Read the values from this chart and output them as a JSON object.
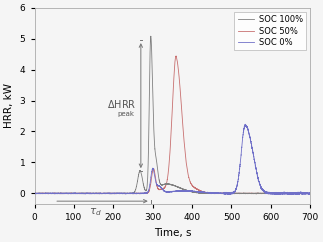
{
  "title": "",
  "xlabel": "Time, s",
  "ylabel": "HRR, kW",
  "xlim": [
    0,
    700
  ],
  "ylim": [
    -0.35,
    6
  ],
  "yticks": [
    0,
    1,
    2,
    3,
    4,
    5,
    6
  ],
  "xticks": [
    0,
    100,
    200,
    300,
    400,
    500,
    600,
    700
  ],
  "legend_entries": [
    "SOC 100%",
    "SOC 50%",
    "SOC 0%"
  ],
  "colors": {
    "soc100": "#808080",
    "soc50": "#c87070",
    "soc0": "#7070c8"
  },
  "background": "#f0f0f0"
}
